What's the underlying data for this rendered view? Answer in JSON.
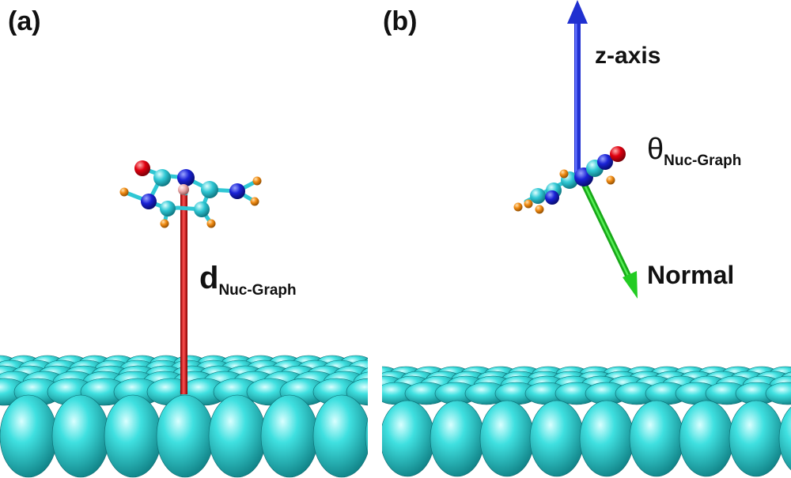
{
  "panels": [
    {
      "label": "(a)",
      "distance_label": {
        "main": "d",
        "sub": "Nuc-Graph"
      }
    },
    {
      "label": "(b)",
      "z_axis_label": "z-axis",
      "angle_label": {
        "main": "θ",
        "sub": "Nuc-Graph"
      },
      "normal_label": "Normal"
    }
  ],
  "colors": {
    "surface_atom": "#25d0d0",
    "carbon": "#2fc7d4",
    "nitrogen": "#1a22d6",
    "oxygen": "#e00010",
    "hydrogen": "#f08a12",
    "center_atom": "#e8a4a4",
    "distance_rod": "#dd2020",
    "z_axis_arrow": "#2030d0",
    "normal_arrow": "#22cc22"
  }
}
